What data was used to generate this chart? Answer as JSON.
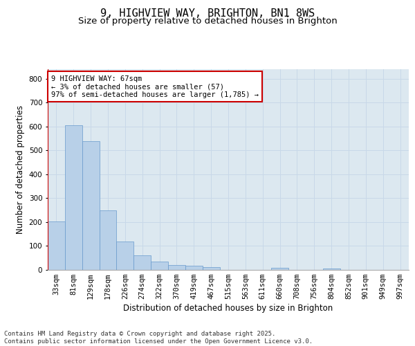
{
  "title": "9, HIGHVIEW WAY, BRIGHTON, BN1 8WS",
  "subtitle": "Size of property relative to detached houses in Brighton",
  "xlabel": "Distribution of detached houses by size in Brighton",
  "ylabel": "Number of detached properties",
  "categories": [
    "33sqm",
    "81sqm",
    "129sqm",
    "178sqm",
    "226sqm",
    "274sqm",
    "322sqm",
    "370sqm",
    "419sqm",
    "467sqm",
    "515sqm",
    "563sqm",
    "611sqm",
    "660sqm",
    "708sqm",
    "756sqm",
    "804sqm",
    "852sqm",
    "901sqm",
    "949sqm",
    "997sqm"
  ],
  "values": [
    203,
    606,
    540,
    250,
    120,
    60,
    36,
    20,
    18,
    13,
    0,
    0,
    0,
    8,
    0,
    0,
    7,
    0,
    0,
    0,
    0
  ],
  "bar_color": "#b8d0e8",
  "bar_edge_color": "#6699cc",
  "grid_color": "#c8d8e8",
  "background_color": "#dce8f0",
  "annotation_box_edgecolor": "#cc0000",
  "annotation_text": "9 HIGHVIEW WAY: 67sqm\n← 3% of detached houses are smaller (57)\n97% of semi-detached houses are larger (1,785) →",
  "redline_x": -0.5,
  "ylim": [
    0,
    840
  ],
  "yticks": [
    0,
    100,
    200,
    300,
    400,
    500,
    600,
    700,
    800
  ],
  "footer_text": "Contains HM Land Registry data © Crown copyright and database right 2025.\nContains public sector information licensed under the Open Government Licence v3.0.",
  "title_fontsize": 11,
  "subtitle_fontsize": 9.5,
  "axis_label_fontsize": 8.5,
  "tick_fontsize": 7.5,
  "annotation_fontsize": 7.5,
  "footer_fontsize": 6.5
}
